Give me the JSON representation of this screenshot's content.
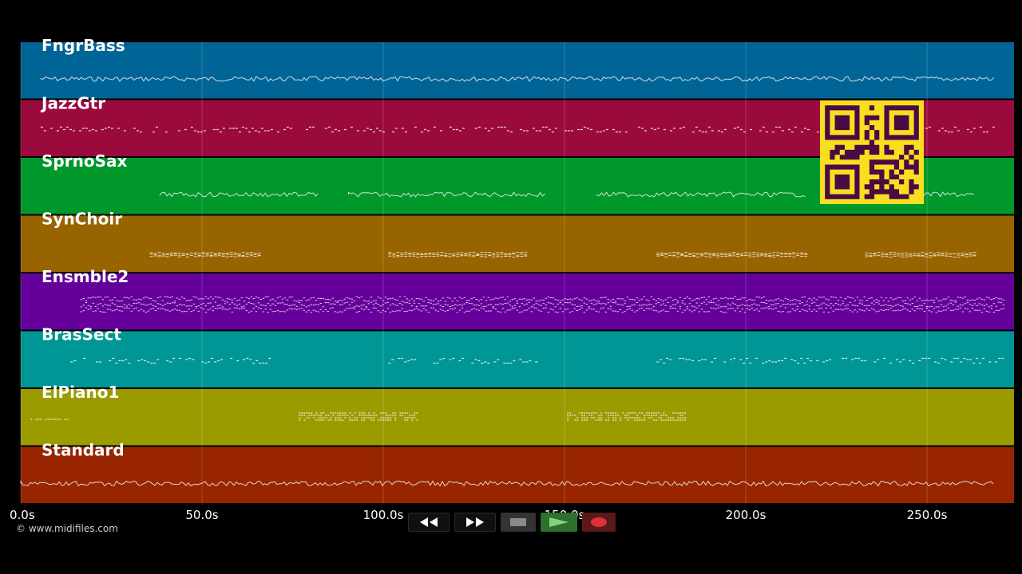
{
  "tracks": [
    {
      "name": "FngrBass",
      "color": "#006596",
      "style": "wave",
      "segments": [
        [
          0.02,
          0.98
        ]
      ]
    },
    {
      "name": "JazzGtr",
      "color": "#9b0a3c",
      "style": "dashes",
      "segments": [
        [
          0.02,
          0.98
        ]
      ]
    },
    {
      "name": "SprnoSax",
      "color": "#00982a",
      "style": "wave",
      "segments": [
        [
          0.14,
          0.3
        ],
        [
          0.33,
          0.53
        ],
        [
          0.58,
          0.79
        ],
        [
          0.88,
          0.96
        ]
      ]
    },
    {
      "name": "SynChoir",
      "color": "#976400",
      "style": "bars",
      "segments": [
        [
          0.13,
          0.24
        ],
        [
          0.37,
          0.51
        ],
        [
          0.64,
          0.79
        ],
        [
          0.85,
          0.96
        ]
      ]
    },
    {
      "name": "Ensmble2",
      "color": "#66009b",
      "style": "dense",
      "segments": [
        [
          0.06,
          0.99
        ]
      ]
    },
    {
      "name": "BrasSect",
      "color": "#009696",
      "style": "dashes",
      "segments": [
        [
          0.05,
          0.25
        ],
        [
          0.37,
          0.52
        ],
        [
          0.64,
          0.99
        ]
      ]
    },
    {
      "name": "ElPiano1",
      "color": "#9b9b00",
      "style": "blocks",
      "segments": [
        [
          0.01,
          0.05
        ],
        [
          0.28,
          0.4
        ],
        [
          0.55,
          0.67
        ]
      ]
    },
    {
      "name": "Standard",
      "color": "#982500",
      "style": "wave",
      "segments": [
        [
          0.0,
          0.98
        ]
      ]
    }
  ],
  "time_axis": {
    "ticks": [
      "0.0s",
      "50.0s",
      "100.0s",
      "150.0s",
      "200.0s",
      "250.0s"
    ],
    "tick_values": [
      0,
      50,
      100,
      150,
      200,
      250
    ],
    "max_seconds": 274
  },
  "copyright": "© www.midifiles.com",
  "qr_colors": {
    "fg": "#4a0a44",
    "bg": "#f7df20"
  },
  "transport": {
    "rewind": "rewind-icon",
    "fast_forward": "fast-forward-icon",
    "stop": "stop-icon",
    "play": "play-icon",
    "record": "record-icon"
  }
}
